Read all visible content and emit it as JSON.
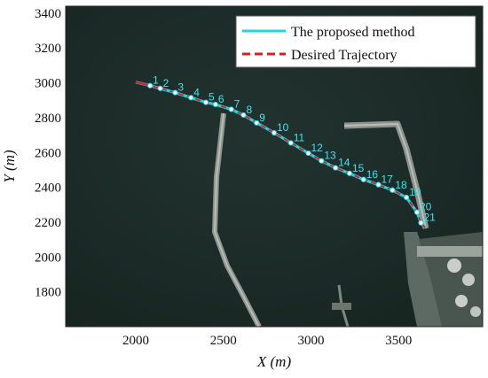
{
  "chart_data": {
    "type": "line",
    "xlabel": "X (m)",
    "ylabel": "Y (m)",
    "xlim": [
      1600,
      3980
    ],
    "ylim": [
      1600,
      3440
    ],
    "xticks": [
      2000,
      2500,
      3000,
      3500
    ],
    "yticks": [
      1800,
      2000,
      2200,
      2400,
      2600,
      2800,
      3000,
      3200,
      3400
    ],
    "legend_position": "top-right",
    "background": "satellite-image",
    "series": [
      {
        "name": "The proposed method",
        "color": "#22d3e6",
        "style": "solid",
        "x": [
          2000,
          2035,
          2082,
          2140,
          2225,
          2315,
          2400,
          2455,
          2545,
          2615,
          2690,
          2790,
          2885,
          2985,
          3060,
          3140,
          3220,
          3300,
          3385,
          3465,
          3545,
          3605,
          3628,
          3652
        ],
        "y": [
          3004,
          2996,
          2984,
          2968,
          2944,
          2915,
          2888,
          2876,
          2848,
          2815,
          2770,
          2713,
          2655,
          2596,
          2552,
          2512,
          2480,
          2445,
          2415,
          2384,
          2342,
          2257,
          2196,
          2168
        ]
      },
      {
        "name": "Desired Trajectory",
        "color": "#e0191b",
        "style": "dashed",
        "x": [
          2000,
          2035,
          2082,
          2140,
          2225,
          2315,
          2400,
          2455,
          2545,
          2615,
          2690,
          2790,
          2885,
          2985,
          3060,
          3140,
          3220,
          3300,
          3385,
          3465,
          3545,
          3605,
          3628,
          3652
        ],
        "y": [
          3004,
          2996,
          2984,
          2968,
          2944,
          2915,
          2888,
          2876,
          2848,
          2815,
          2770,
          2713,
          2655,
          2596,
          2552,
          2512,
          2480,
          2445,
          2415,
          2384,
          2342,
          2257,
          2196,
          2168
        ]
      }
    ],
    "waypoints": [
      {
        "label": "1",
        "x": 2082,
        "y": 2984
      },
      {
        "label": "2",
        "x": 2140,
        "y": 2968
      },
      {
        "label": "3",
        "x": 2225,
        "y": 2944
      },
      {
        "label": "4",
        "x": 2315,
        "y": 2915
      },
      {
        "label": "5",
        "x": 2400,
        "y": 2888
      },
      {
        "label": "6",
        "x": 2455,
        "y": 2876
      },
      {
        "label": "7",
        "x": 2545,
        "y": 2848
      },
      {
        "label": "8",
        "x": 2615,
        "y": 2815
      },
      {
        "label": "9",
        "x": 2690,
        "y": 2770
      },
      {
        "label": "10",
        "x": 2790,
        "y": 2713
      },
      {
        "label": "11",
        "x": 2885,
        "y": 2655
      },
      {
        "label": "12",
        "x": 2985,
        "y": 2596
      },
      {
        "label": "13",
        "x": 3060,
        "y": 2552
      },
      {
        "label": "14",
        "x": 3140,
        "y": 2512
      },
      {
        "label": "15",
        "x": 3220,
        "y": 2480
      },
      {
        "label": "16",
        "x": 3300,
        "y": 2445
      },
      {
        "label": "17",
        "x": 3385,
        "y": 2415
      },
      {
        "label": "18",
        "x": 3465,
        "y": 2384
      },
      {
        "label": "19",
        "x": 3545,
        "y": 2342
      },
      {
        "label": "20",
        "x": 3605,
        "y": 2257
      },
      {
        "label": "21",
        "x": 3628,
        "y": 2196
      }
    ]
  }
}
